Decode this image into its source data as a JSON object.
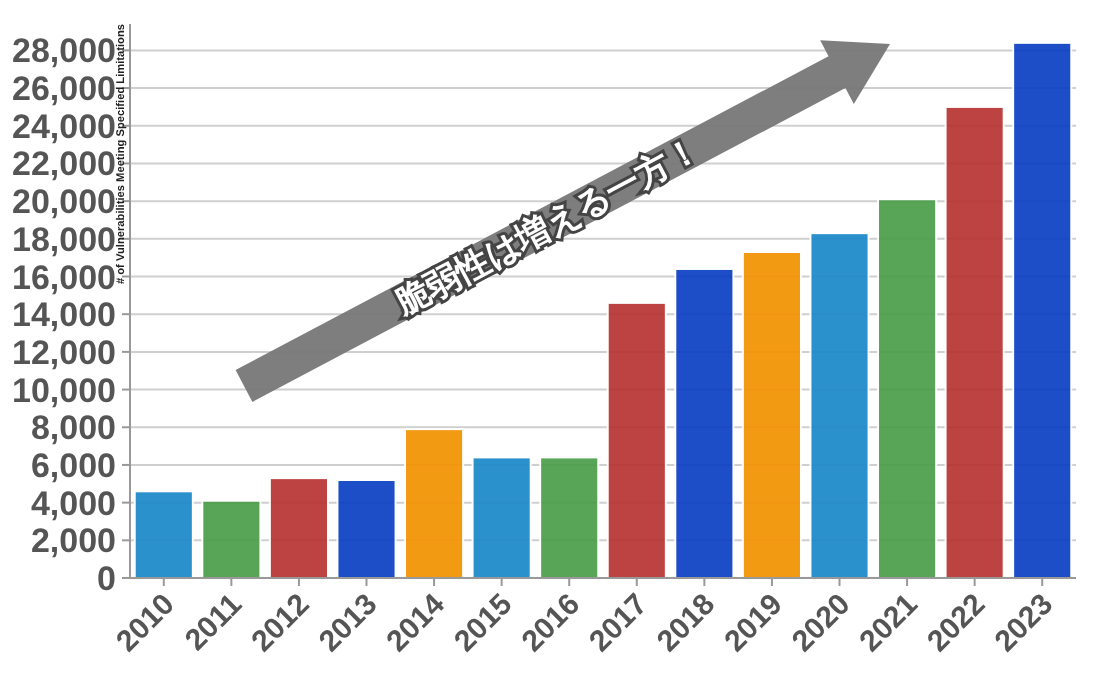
{
  "chart_data": {
    "type": "bar",
    "ylabel": "# of Vulnerabilities Meeting Specified Limitations",
    "annotations": [
      "脆弱性は増える一方！"
    ],
    "categories": [
      "2010",
      "2011",
      "2012",
      "2013",
      "2014",
      "2015",
      "2016",
      "2017",
      "2018",
      "2019",
      "2020",
      "2021",
      "2022",
      "2023"
    ],
    "values": [
      4600,
      4100,
      5300,
      5200,
      7900,
      6400,
      6400,
      14600,
      16400,
      17300,
      18300,
      20100,
      25000,
      28400
    ],
    "colors": [
      "#1a88c9",
      "#4a9e4a",
      "#b83232",
      "#0a3fc4",
      "#f39200",
      "#1a88c9",
      "#4a9e4a",
      "#b83232",
      "#0a3fc4",
      "#f39200",
      "#1a88c9",
      "#4a9e4a",
      "#b83232",
      "#0a3fc4"
    ],
    "ylim": [
      0,
      29400
    ],
    "yticks": [
      {
        "value": 0,
        "label": "0"
      },
      {
        "value": 2000,
        "label": "2,000"
      },
      {
        "value": 4000,
        "label": "4,000"
      },
      {
        "value": 6000,
        "label": "6,000"
      },
      {
        "value": 8000,
        "label": "8,000"
      },
      {
        "value": 10000,
        "label": "10,000"
      },
      {
        "value": 12000,
        "label": "12,000"
      },
      {
        "value": 14000,
        "label": "14,000"
      },
      {
        "value": 16000,
        "label": "16,000"
      },
      {
        "value": 18000,
        "label": "18,000"
      },
      {
        "value": 20000,
        "label": "20,000"
      },
      {
        "value": 22000,
        "label": "22,000"
      },
      {
        "value": 24000,
        "label": "24,000"
      },
      {
        "value": 26000,
        "label": "26,000"
      },
      {
        "value": 28000,
        "label": "28,000"
      }
    ],
    "grid": "y"
  }
}
